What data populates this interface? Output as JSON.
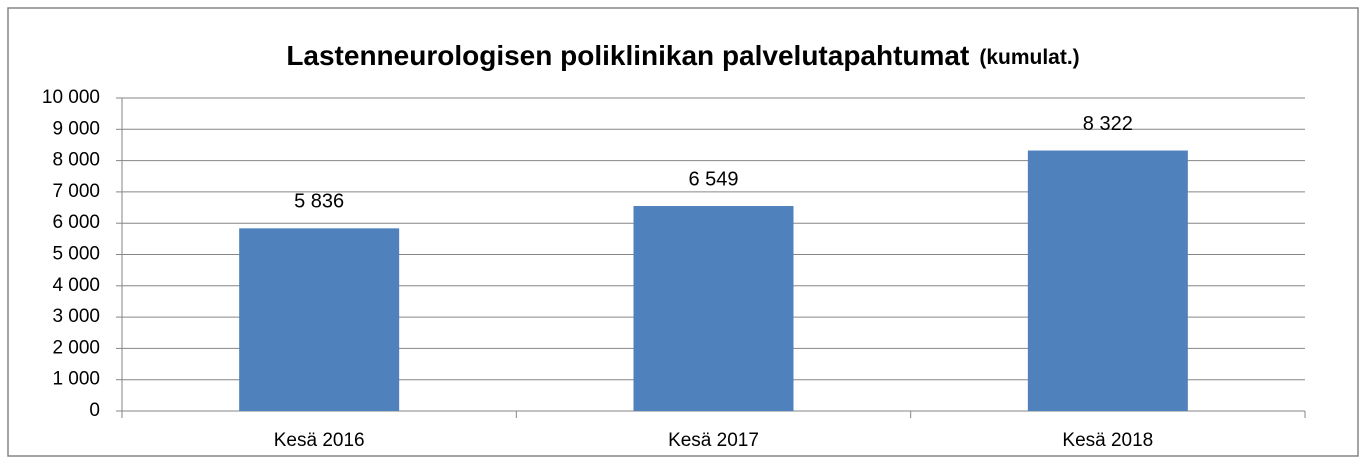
{
  "chart_data": {
    "type": "bar",
    "title": "Lastenneurologisen poliklinikan palvelutapahtumat",
    "subtitle": "(kumulat.)",
    "categories": [
      "Kesä 2016",
      "Kesä 2017",
      "Kesä 2018"
    ],
    "values": [
      5836,
      6549,
      8322
    ],
    "value_labels": [
      "5 836",
      "6 549",
      "8 322"
    ],
    "color": "#4f81bd",
    "ylim": [
      0,
      10000
    ],
    "yticks": [
      0,
      {
        "value": 1000,
        "label": "1 000"
      },
      {
        "value": 2000,
        "label": "2 000"
      },
      {
        "value": 3000,
        "label": "3 000"
      },
      {
        "value": 4000,
        "label": "4 000"
      },
      {
        "value": 5000,
        "label": "5 000"
      },
      {
        "value": 6000,
        "label": "6 000"
      },
      {
        "value": 7000,
        "label": "7 000"
      },
      {
        "value": 8000,
        "label": "8 000"
      },
      {
        "value": 9000,
        "label": "9 000"
      },
      {
        "value": 10000,
        "label": "10 000"
      }
    ],
    "grid": true
  }
}
